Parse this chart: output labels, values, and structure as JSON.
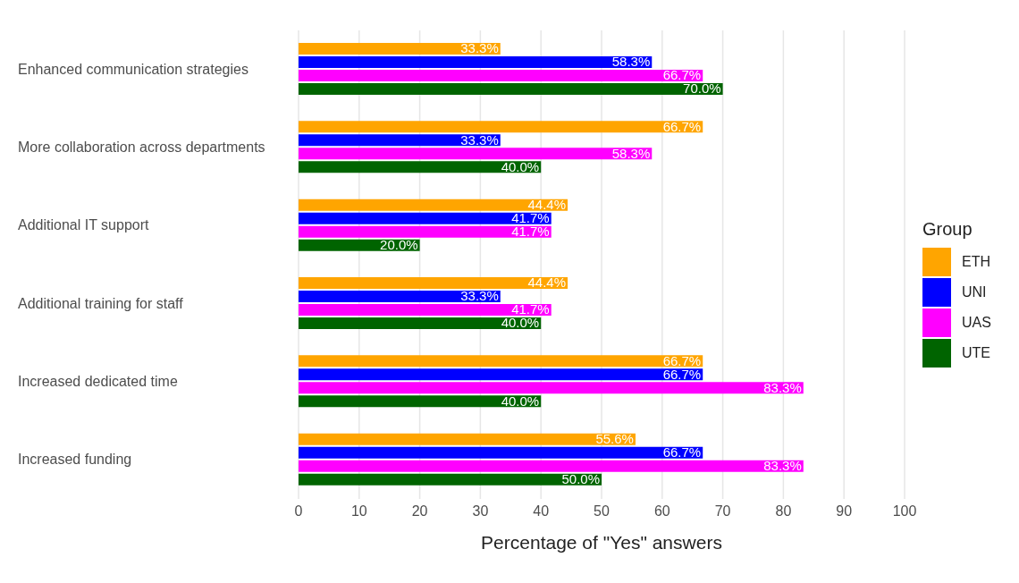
{
  "chart_data": {
    "type": "bar",
    "orientation": "horizontal",
    "xlabel": "Percentage of \"Yes\" answers",
    "legend_title": "Group",
    "legend": "right",
    "grid": "x",
    "xlim": [
      0,
      100
    ],
    "xticks": [
      0,
      10,
      20,
      30,
      40,
      50,
      60,
      70,
      80,
      90,
      100
    ],
    "categories": [
      "Enhanced communication strategies",
      "More collaboration across departments",
      "Additional IT support",
      "Additional training for staff",
      "Increased dedicated time",
      "Increased funding"
    ],
    "series": [
      {
        "name": "ETH",
        "color": "#ffa500",
        "values": [
          33.3,
          66.7,
          44.4,
          44.4,
          66.7,
          55.6
        ],
        "value_labels": [
          "33.3%",
          "66.7%",
          "44.4%",
          "44.4%",
          "66.7%",
          "55.6%"
        ]
      },
      {
        "name": "UNI",
        "color": "#0000ff",
        "values": [
          58.3,
          33.3,
          41.7,
          33.3,
          66.7,
          66.7
        ],
        "value_labels": [
          "58.3%",
          "33.3%",
          "41.7%",
          "33.3%",
          "66.7%",
          "66.7%"
        ]
      },
      {
        "name": "UAS",
        "color": "#ff00ff",
        "values": [
          66.7,
          58.3,
          41.7,
          41.7,
          83.3,
          83.3
        ],
        "value_labels": [
          "66.7%",
          "58.3%",
          "41.7%",
          "41.7%",
          "83.3%",
          "83.3%"
        ]
      },
      {
        "name": "UTE",
        "color": "#006400",
        "values": [
          70.0,
          40.0,
          20.0,
          40.0,
          40.0,
          50.0
        ],
        "value_labels": [
          "70.0%",
          "40.0%",
          "20.0%",
          "40.0%",
          "40.0%",
          "50.0%"
        ]
      }
    ]
  }
}
